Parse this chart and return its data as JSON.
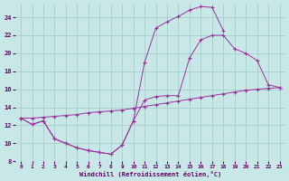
{
  "xlabel": "Windchill (Refroidissement éolien,°C)",
  "bg_color": "#c8e8e8",
  "line_color": "#993399",
  "xlim": [
    -0.5,
    23.5
  ],
  "ylim": [
    8,
    25.5
  ],
  "xticks": [
    0,
    1,
    2,
    3,
    4,
    5,
    6,
    7,
    8,
    9,
    10,
    11,
    12,
    13,
    14,
    15,
    16,
    17,
    18,
    19,
    20,
    21,
    22,
    23
  ],
  "yticks": [
    8,
    10,
    12,
    14,
    16,
    18,
    20,
    22,
    24
  ],
  "grid_color": "#a0c8c8",
  "series": [
    {
      "x": [
        0,
        1,
        2,
        3,
        4,
        5,
        6,
        7,
        8,
        9,
        10,
        11,
        12,
        13,
        14,
        15,
        16,
        17,
        18,
        19,
        20,
        21,
        22,
        23
      ],
      "y": [
        12.8,
        12.8,
        12.9,
        13.0,
        13.1,
        13.2,
        13.4,
        13.5,
        13.6,
        13.7,
        13.9,
        14.1,
        14.3,
        14.5,
        14.7,
        14.9,
        15.1,
        15.3,
        15.5,
        15.7,
        15.9,
        16.0,
        16.1,
        16.2
      ]
    },
    {
      "x": [
        0,
        1,
        2,
        3,
        4,
        5,
        6,
        7,
        8,
        9,
        10,
        11,
        12,
        13,
        14,
        15,
        16,
        17,
        18
      ],
      "y": [
        12.8,
        12.1,
        12.5,
        10.5,
        10.0,
        9.5,
        9.2,
        9.0,
        8.8,
        9.8,
        12.5,
        19.0,
        22.8,
        23.5,
        24.1,
        24.8,
        25.2,
        25.1,
        22.5
      ]
    },
    {
      "x": [
        0,
        1,
        2,
        3,
        4,
        5,
        6,
        7,
        8,
        9,
        10,
        11,
        12,
        13,
        14,
        15,
        16,
        17,
        18,
        19,
        20,
        21,
        22,
        23
      ],
      "y": [
        12.8,
        12.1,
        12.5,
        10.5,
        10.0,
        9.5,
        9.2,
        9.0,
        8.8,
        9.8,
        12.5,
        14.8,
        15.2,
        15.3,
        15.3,
        19.5,
        21.5,
        22.0,
        22.0,
        20.5,
        20.0,
        19.2,
        16.5,
        16.2
      ]
    }
  ]
}
